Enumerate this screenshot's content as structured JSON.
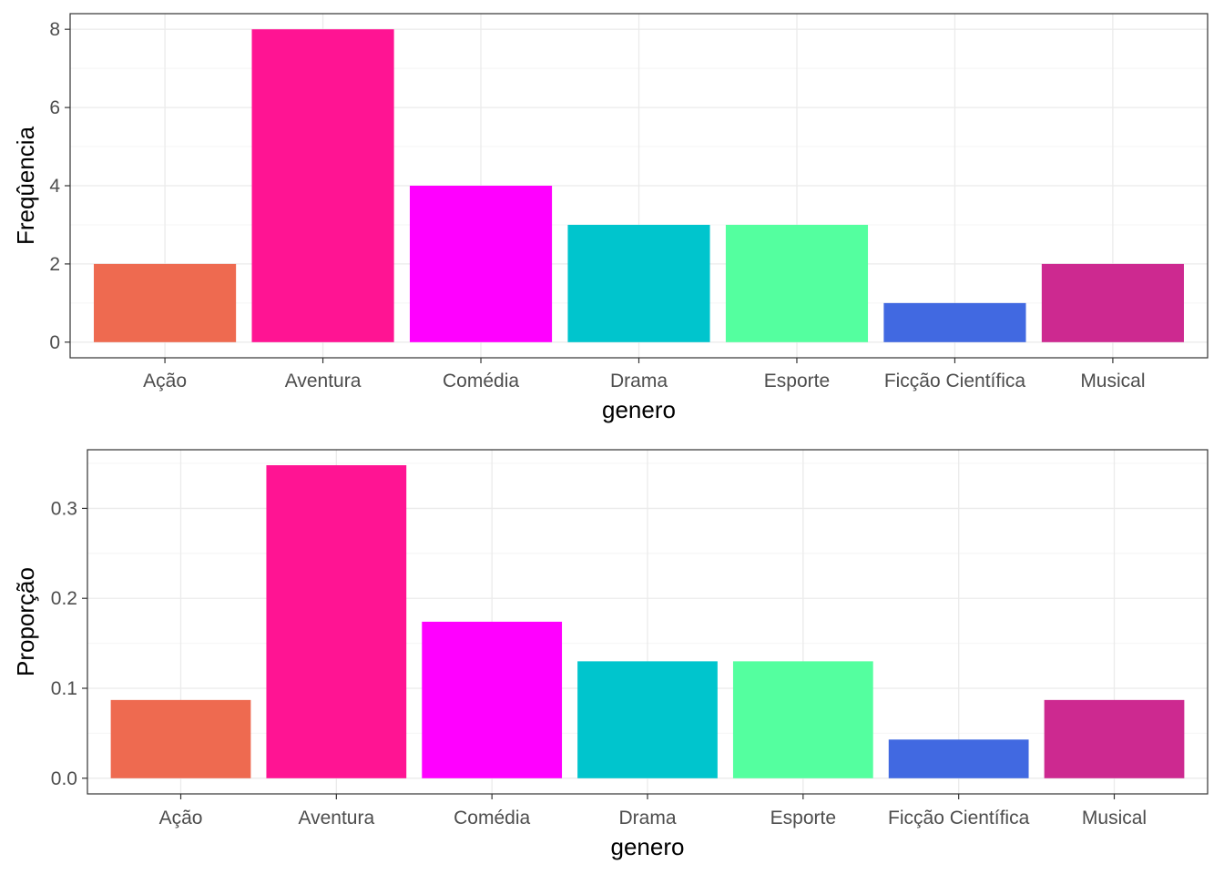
{
  "colors": {
    "Ação": "#EE6A50",
    "Aventura": "#FF1493",
    "Comédia": "#FF00FF",
    "Drama": "#00C5CD",
    "Esporte": "#54FF9F",
    "Ficção Científica": "#4169E1",
    "Musical": "#CD2990"
  },
  "chart_data": [
    {
      "type": "bar",
      "categories": [
        "Ação",
        "Aventura",
        "Comédia",
        "Drama",
        "Esporte",
        "Ficção Científica",
        "Musical"
      ],
      "values": [
        2,
        8,
        4,
        3,
        3,
        1,
        2
      ],
      "xlabel": "genero",
      "ylabel": "Freqûencia",
      "ylim": [
        -0.4,
        8.4
      ],
      "yticks": [
        0,
        2,
        4,
        6,
        8
      ],
      "ytick_labels": [
        "0",
        "2",
        "4",
        "6",
        "8"
      ],
      "grid": true,
      "legend": "none"
    },
    {
      "type": "bar",
      "categories": [
        "Ação",
        "Aventura",
        "Comédia",
        "Drama",
        "Esporte",
        "Ficção Científica",
        "Musical"
      ],
      "values": [
        0.087,
        0.348,
        0.174,
        0.13,
        0.13,
        0.043,
        0.087
      ],
      "xlabel": "genero",
      "ylabel": "Proporção",
      "ylim": [
        -0.0174,
        0.3652
      ],
      "yticks": [
        0,
        0.1,
        0.2,
        0.3
      ],
      "ytick_labels": [
        "0.0",
        "0.1",
        "0.2",
        "0.3"
      ],
      "grid": true,
      "legend": "none"
    }
  ]
}
